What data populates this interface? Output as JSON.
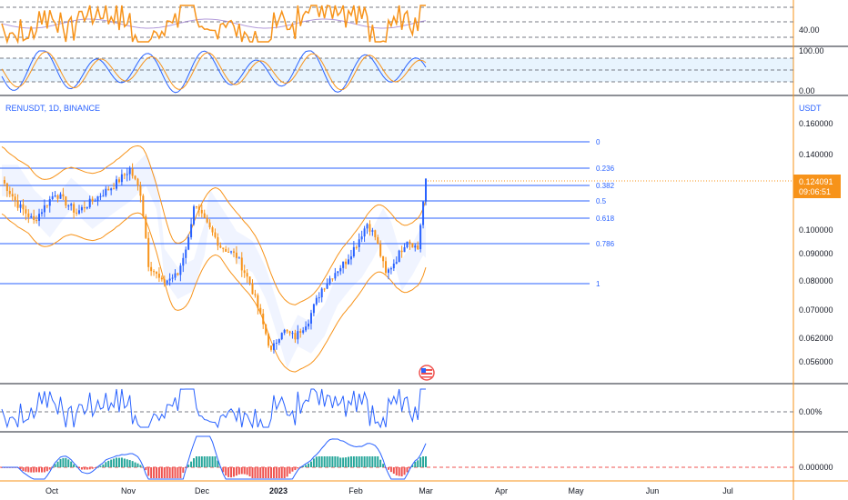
{
  "chart_data": {
    "type": "candlestick",
    "symbol_title": "RENUSDT, 1D, BINANCE",
    "currency": "USDT",
    "x_axis": {
      "labels": [
        "Oct",
        "Nov",
        "Dec",
        "2023",
        "Feb",
        "Mar",
        "Apr",
        "May",
        "Jun",
        "Jul"
      ]
    },
    "price_axis": {
      "scale": "log",
      "ticks": [
        "0.160000",
        "0.140000",
        "0.100000",
        "0.090000",
        "0.080000",
        "0.070000",
        "0.062000",
        "0.056000"
      ],
      "current_price": "0.124091",
      "countdown": "09:06:51"
    },
    "fibonacci": [
      {
        "level": "0"
      },
      {
        "level": "0.236"
      },
      {
        "level": "0.382"
      },
      {
        "level": "0.5"
      },
      {
        "level": "0.618"
      },
      {
        "level": "0.786"
      },
      {
        "level": "1"
      }
    ],
    "panes": {
      "rsi": {
        "ticks": [
          "40.00"
        ]
      },
      "stoch": {
        "ticks": [
          "100.00",
          "0.00"
        ]
      },
      "oscillator": {
        "ticks": [
          "0.00%"
        ]
      },
      "macd": {
        "ticks": [
          "0.000000"
        ]
      }
    },
    "colors": {
      "up": "#2962ff",
      "down": "#f7931a",
      "fib_line": "#2962ff",
      "bands": "#f7931a",
      "hist_up": "#26a69a",
      "hist_down": "#ef5350",
      "price_badge": "#f7931a"
    }
  }
}
